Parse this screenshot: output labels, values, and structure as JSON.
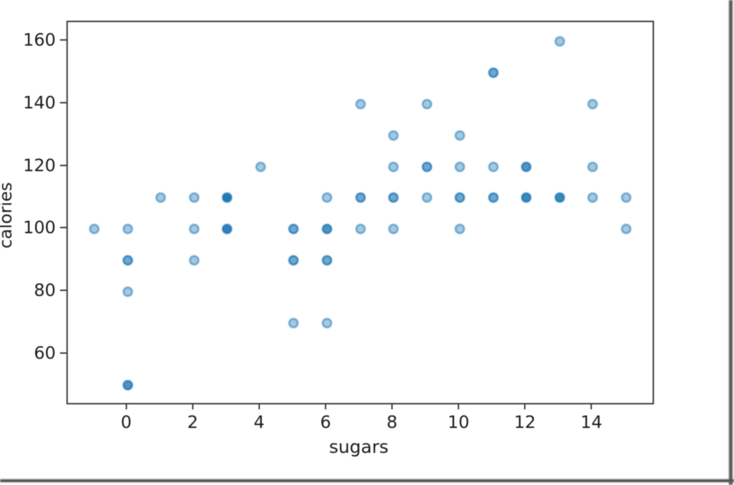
{
  "chart_data": {
    "type": "scatter",
    "title": "",
    "xlabel": "sugars",
    "ylabel": "calories",
    "xlim": [
      -1.8,
      15.8
    ],
    "ylim": [
      44.4,
      166.2
    ],
    "x_ticks": [
      0,
      2,
      4,
      6,
      8,
      10,
      12,
      14
    ],
    "y_ticks": [
      160,
      140,
      120,
      100,
      80,
      60
    ],
    "grid": false,
    "legend": "none",
    "marker_color": "#1f77b4",
    "marker_alpha": 0.4,
    "note": "n = number of overlapping data points at that position (darker dot = more overlap)",
    "points": [
      {
        "x": -1,
        "y": 100,
        "n": 1
      },
      {
        "x": 0,
        "y": 50,
        "n": 3
      },
      {
        "x": 0,
        "y": 80,
        "n": 1
      },
      {
        "x": 0,
        "y": 90,
        "n": 2
      },
      {
        "x": 0,
        "y": 100,
        "n": 1
      },
      {
        "x": 1,
        "y": 110,
        "n": 1
      },
      {
        "x": 2,
        "y": 90,
        "n": 1
      },
      {
        "x": 2,
        "y": 100,
        "n": 1
      },
      {
        "x": 2,
        "y": 110,
        "n": 1
      },
      {
        "x": 3,
        "y": 100,
        "n": 5
      },
      {
        "x": 3,
        "y": 110,
        "n": 7
      },
      {
        "x": 4,
        "y": 120,
        "n": 1
      },
      {
        "x": 5,
        "y": 70,
        "n": 1
      },
      {
        "x": 5,
        "y": 90,
        "n": 2
      },
      {
        "x": 5,
        "y": 100,
        "n": 2
      },
      {
        "x": 6,
        "y": 70,
        "n": 1
      },
      {
        "x": 6,
        "y": 90,
        "n": 2
      },
      {
        "x": 6,
        "y": 100,
        "n": 3
      },
      {
        "x": 6,
        "y": 110,
        "n": 1
      },
      {
        "x": 7,
        "y": 100,
        "n": 1
      },
      {
        "x": 7,
        "y": 110,
        "n": 2
      },
      {
        "x": 7,
        "y": 140,
        "n": 1
      },
      {
        "x": 8,
        "y": 100,
        "n": 1
      },
      {
        "x": 8,
        "y": 110,
        "n": 2
      },
      {
        "x": 8,
        "y": 120,
        "n": 1
      },
      {
        "x": 8,
        "y": 130,
        "n": 1
      },
      {
        "x": 9,
        "y": 110,
        "n": 1
      },
      {
        "x": 9,
        "y": 120,
        "n": 2
      },
      {
        "x": 9,
        "y": 140,
        "n": 1
      },
      {
        "x": 10,
        "y": 100,
        "n": 1
      },
      {
        "x": 10,
        "y": 110,
        "n": 2
      },
      {
        "x": 10,
        "y": 120,
        "n": 1
      },
      {
        "x": 10,
        "y": 130,
        "n": 1
      },
      {
        "x": 11,
        "y": 110,
        "n": 2
      },
      {
        "x": 11,
        "y": 120,
        "n": 1
      },
      {
        "x": 11,
        "y": 150,
        "n": 2
      },
      {
        "x": 12,
        "y": 110,
        "n": 4
      },
      {
        "x": 12,
        "y": 120,
        "n": 3
      },
      {
        "x": 13,
        "y": 110,
        "n": 4
      },
      {
        "x": 13,
        "y": 160,
        "n": 1
      },
      {
        "x": 14,
        "y": 110,
        "n": 1
      },
      {
        "x": 14,
        "y": 120,
        "n": 1
      },
      {
        "x": 14,
        "y": 140,
        "n": 1
      },
      {
        "x": 15,
        "y": 100,
        "n": 1
      },
      {
        "x": 15,
        "y": 110,
        "n": 1
      }
    ]
  }
}
